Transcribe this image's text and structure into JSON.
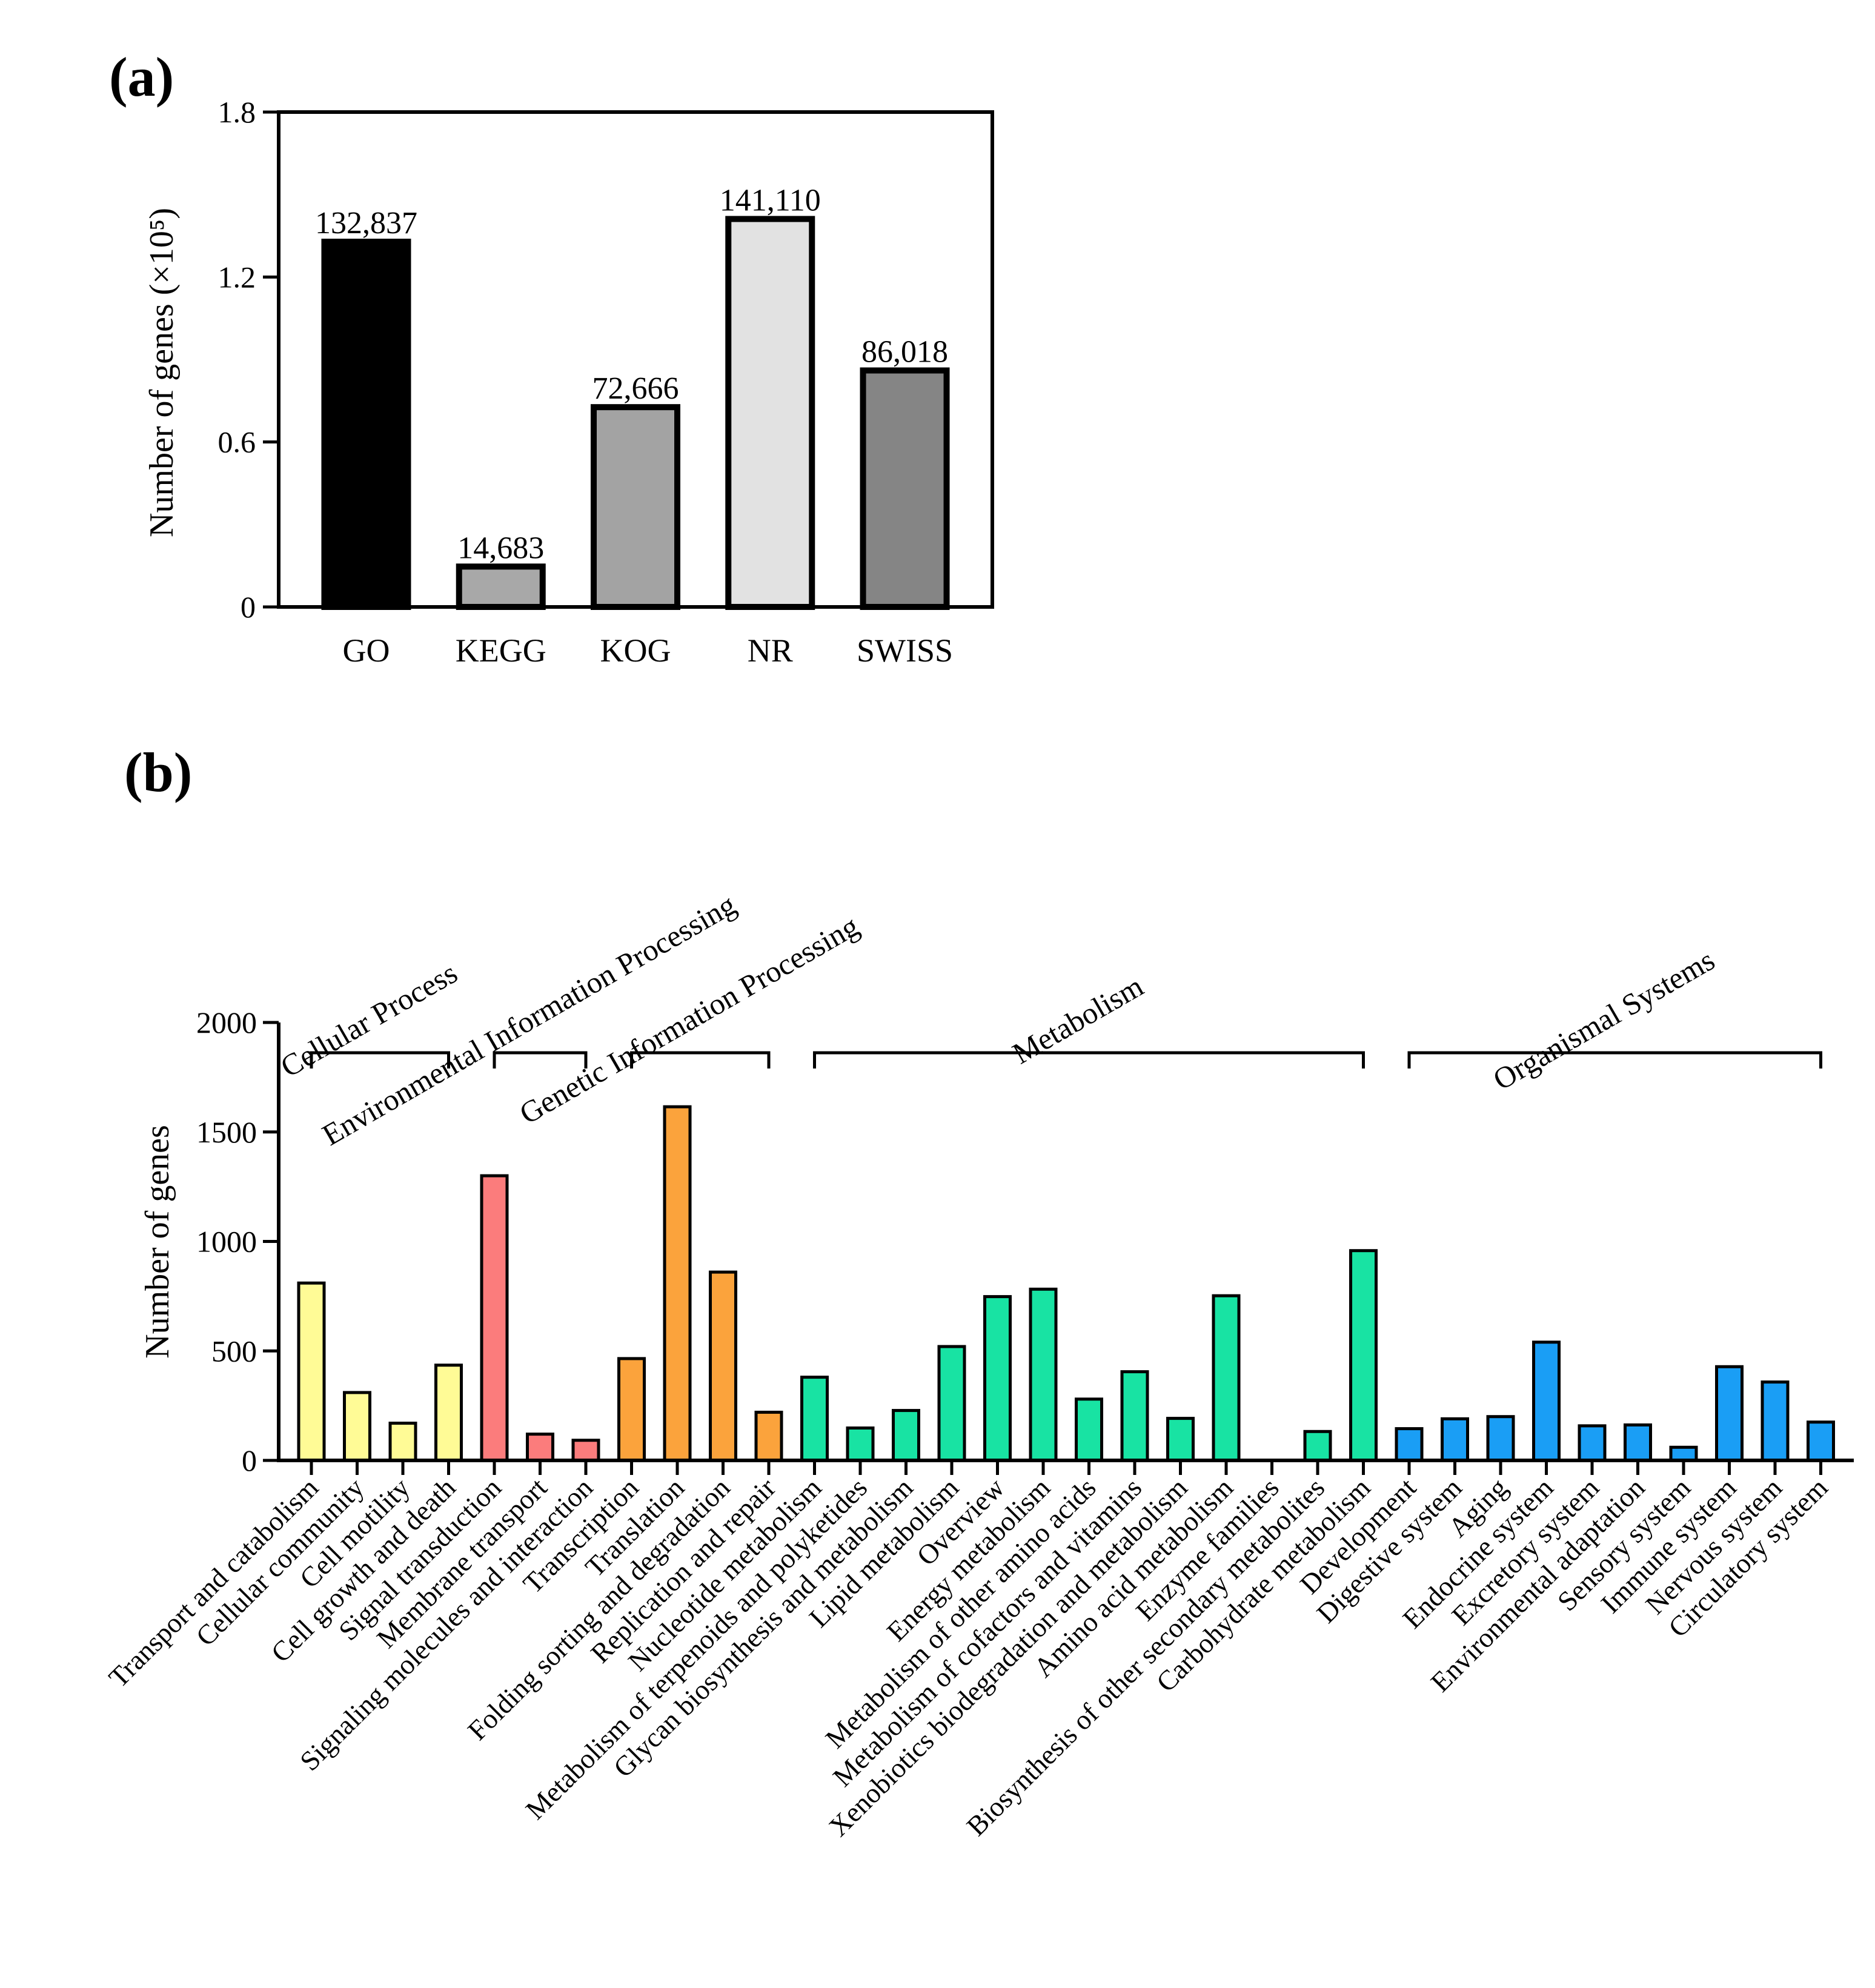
{
  "chart_data": [
    {
      "panel": "(a)",
      "type": "bar",
      "title": "",
      "xlabel": "",
      "ylabel": "Number of genes (×10⁵)",
      "ylim": [
        0,
        1.8
      ],
      "yticks": [
        "0",
        "0.6",
        "1.2",
        "1.8"
      ],
      "categories": [
        "GO",
        "KEGG",
        "KOG",
        "NR",
        "SWISS"
      ],
      "values": [
        1.32837,
        0.14683,
        0.72666,
        1.4111,
        0.86018
      ],
      "data_labels": [
        "132,837",
        "14,683",
        "72,666",
        "141,110",
        "86,018"
      ],
      "colors": [
        "#000000",
        "#a8a8a8",
        "#a3a3a3",
        "#e2e2e2",
        "#858585"
      ]
    },
    {
      "panel": "(b)",
      "type": "bar",
      "title": "",
      "xlabel": "",
      "ylabel": "Number of genes",
      "ylim": [
        0,
        2000
      ],
      "yticks": [
        "0",
        "500",
        "1000",
        "1500",
        "2000"
      ],
      "groups": [
        {
          "name": "Cellular Process",
          "color": "#fffb96",
          "categories": [
            "Transport and catabolism",
            "Cellular community",
            "Cell motility",
            "Cell growth and death"
          ],
          "values": [
            810,
            310,
            170,
            435
          ]
        },
        {
          "name": "Environmental Information Processing",
          "color": "#fb7c7c",
          "categories": [
            "Signal transduction",
            "Membrane transport",
            "Signaling molecules and interaction"
          ],
          "values": [
            1300,
            120,
            92
          ]
        },
        {
          "name": "Genetic Information Processing",
          "color": "#fba33c",
          "categories": [
            "Transcription",
            "Translation",
            "Folding sorting and  degradation",
            "Replication and repair"
          ],
          "values": [
            465,
            1615,
            860,
            220
          ]
        },
        {
          "name": "Metabolism",
          "color": "#18e3a3",
          "categories": [
            "Nucleotide metabolism",
            "Metabolism of terpenoids and polyketides",
            "Glycan biosynthesis and metabolism",
            "Lipid metabolism",
            "Overview",
            "Energy metabolism",
            "Metabolism of other amino acids",
            "Metabolism of cofactors and vitamins",
            "Xenobiotics biodegradation and metabolism",
            "Amino acid metabolism",
            "Enzyme families",
            "Biosynthesis of other secondary metabolites",
            "Carbohydrate metabolism"
          ],
          "values": [
            380,
            148,
            228,
            520,
            748,
            782,
            280,
            405,
            192,
            752,
            0,
            132,
            958
          ]
        },
        {
          "name": "Organismal Systems",
          "color": "#1a9ef5",
          "categories": [
            "Development",
            "Digestive system",
            "Aging",
            "Endocrine system",
            "Excretory system",
            "Environmental adaptation",
            "Sensory system",
            "Immune system",
            "Nervous system",
            "Circulatory system"
          ],
          "values": [
            145,
            190,
            200,
            540,
            158,
            162,
            60,
            428,
            358,
            175
          ]
        }
      ]
    }
  ]
}
